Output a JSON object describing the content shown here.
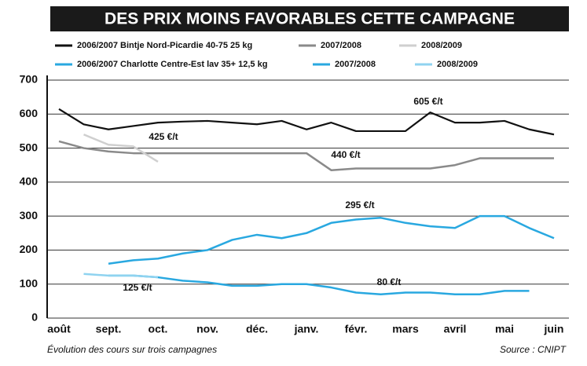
{
  "chart_data": {
    "type": "line",
    "title": "DES PRIX MOINS FAVORABLES CETTE CAMPAGNE",
    "note": "Évolution des cours sur trois campagnes",
    "source": "Source : CNIPT",
    "categories": [
      "août",
      null,
      "sept.",
      null,
      "oct.",
      null,
      "nov.",
      null,
      "déc.",
      null,
      "janv.",
      null,
      "févr.",
      null,
      "mars",
      null,
      "avril",
      null,
      "mai",
      null,
      "juin"
    ],
    "series": [
      {
        "name": "2006/2007 Bintje Nord-Picardie 40-75 25 kg",
        "color": "#111111",
        "values": [
          615,
          570,
          555,
          565,
          575,
          578,
          580,
          575,
          570,
          580,
          555,
          575,
          550,
          550,
          550,
          605,
          575,
          575,
          580,
          555,
          540
        ]
      },
      {
        "name": "2007/2008",
        "color": "#8a8a8a",
        "values": [
          520,
          500,
          490,
          485,
          485,
          485,
          485,
          485,
          485,
          485,
          485,
          435,
          440,
          440,
          440,
          440,
          450,
          470,
          470,
          470,
          470
        ]
      },
      {
        "name": "2008/2009",
        "color": "#cfcfcf",
        "values": [
          null,
          540,
          510,
          505,
          460,
          null,
          null,
          null,
          null,
          null,
          null,
          null,
          null,
          null,
          null,
          null,
          null,
          null,
          null,
          null,
          null
        ]
      },
      {
        "name": "2006/2007 Charlotte Centre-Est lav 35+ 12,5 kg",
        "color": "#29a8e0",
        "values": [
          null,
          null,
          160,
          170,
          175,
          190,
          200,
          230,
          245,
          235,
          250,
          280,
          290,
          295,
          280,
          270,
          265,
          300,
          300,
          265,
          235
        ]
      },
      {
        "name": "2007/2008",
        "color": "#29a8e0",
        "values": [
          null,
          null,
          125,
          125,
          120,
          110,
          105,
          95,
          95,
          100,
          100,
          90,
          75,
          70,
          75,
          75,
          70,
          70,
          80,
          80,
          null
        ]
      },
      {
        "name": "2008/2009",
        "color": "#8fd3f0",
        "values": [
          null,
          130,
          125,
          125,
          120,
          null,
          null,
          null,
          null,
          null,
          null,
          null,
          null,
          null,
          null,
          null,
          null,
          null,
          null,
          null,
          null
        ]
      }
    ],
    "annotations": [
      "605 €/t",
      "425 €/t",
      "440 €/t",
      "295 €/t",
      "125 €/t",
      "80 €/t"
    ],
    "ylim": [
      0,
      700
    ],
    "yticks": [
      0,
      100,
      200,
      300,
      400,
      500,
      600,
      700
    ],
    "grid": true
  }
}
